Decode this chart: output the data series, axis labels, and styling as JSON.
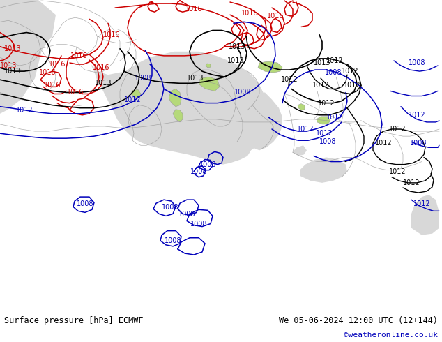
{
  "title_left": "Surface pressure [hPa] ECMWF",
  "title_right": "We 05-06-2024 12:00 UTC (12+144)",
  "copyright": "©weatheronline.co.uk",
  "land_color": "#b5d97a",
  "sea_color": "#d8d8d8",
  "border_color": "#999999",
  "red_color": "#cc0000",
  "blue_color": "#0000bb",
  "black_color": "#000000",
  "bottom_bar_color": "#ffffff",
  "figsize": [
    6.34,
    4.9
  ],
  "dpi": 100,
  "map_extent": [
    -10,
    42,
    27,
    58
  ],
  "label_fontsize": 7.0
}
